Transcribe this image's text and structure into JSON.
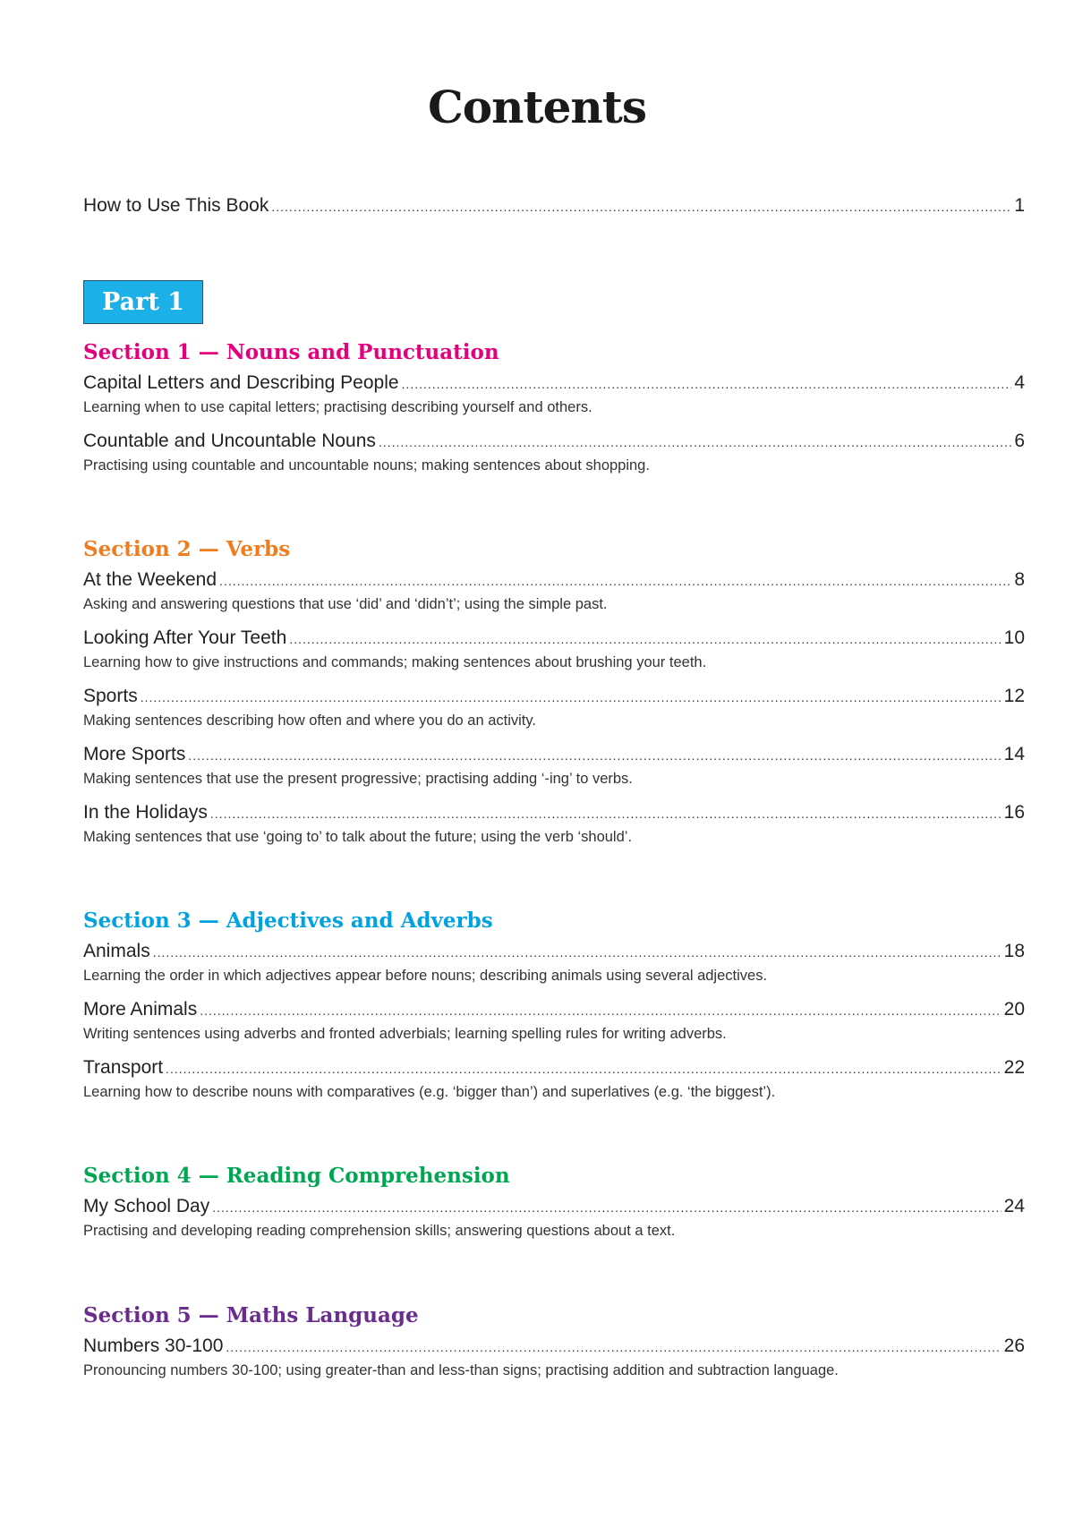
{
  "title": "Contents",
  "intro": {
    "label": "How to Use This Book",
    "page": "1"
  },
  "part": "Part 1",
  "colors": {
    "section1": "#e4007c",
    "section2": "#f07c1e",
    "section3": "#00a3e0",
    "section4": "#00a651",
    "section5": "#6a2c8e",
    "part_box": "#1bb0e8"
  },
  "sections": [
    {
      "title": "Section 1 — Nouns and Punctuation",
      "entries": [
        {
          "label": "Capital Letters and Describing People",
          "page": "4",
          "desc": "Learning when to use capital letters; practising describing yourself and others."
        },
        {
          "label": "Countable and Uncountable Nouns",
          "page": "6",
          "desc": "Practising using countable and uncountable nouns; making sentences about shopping."
        }
      ]
    },
    {
      "title": "Section 2 — Verbs",
      "entries": [
        {
          "label": "At the Weekend",
          "page": "8",
          "desc": "Asking and answering questions that use ‘did’ and ‘didn’t’; using the simple past."
        },
        {
          "label": "Looking After Your Teeth",
          "page": "10",
          "desc": "Learning how to give instructions and commands; making sentences about brushing your teeth."
        },
        {
          "label": "Sports",
          "page": "12",
          "desc": "Making sentences describing how often and where you do an activity."
        },
        {
          "label": "More Sports",
          "page": "14",
          "desc": "Making sentences that use the present progressive; practising adding ‘-ing’ to verbs."
        },
        {
          "label": "In the Holidays",
          "page": "16",
          "desc": "Making sentences that use ‘going to’ to talk about the future; using the verb ‘should’."
        }
      ]
    },
    {
      "title": "Section 3 — Adjectives and Adverbs",
      "entries": [
        {
          "label": "Animals",
          "page": "18",
          "desc": "Learning the order in which adjectives appear before nouns; describing animals using several adjectives."
        },
        {
          "label": "More Animals",
          "page": "20",
          "desc": "Writing sentences using adverbs and fronted adverbials; learning spelling rules for writing adverbs."
        },
        {
          "label": "Transport",
          "page": "22",
          "desc": "Learning how to describe nouns with comparatives (e.g. ‘bigger than’) and superlatives (e.g. ‘the biggest’)."
        }
      ]
    },
    {
      "title": "Section 4 — Reading Comprehension",
      "entries": [
        {
          "label": "My School Day",
          "page": "24",
          "desc": "Practising and developing reading comprehension skills; answering questions about a text."
        }
      ]
    },
    {
      "title": "Section 5 — Maths Language",
      "entries": [
        {
          "label": "Numbers 30-100",
          "page": "26",
          "desc": "Pronouncing numbers 30-100; using greater-than and less-than signs; practising addition and subtraction language."
        }
      ]
    }
  ]
}
